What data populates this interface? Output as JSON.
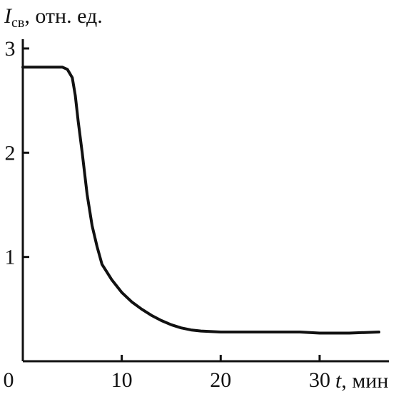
{
  "chart_data": {
    "type": "line",
    "ylabel": {
      "symbol": "I",
      "subscript": "св",
      "unit": ", отн. ед."
    },
    "xlabel": {
      "symbol": "t",
      "unit": ", мин"
    },
    "xlim": [
      0,
      37
    ],
    "ylim": [
      0,
      3
    ],
    "x_ticks": [
      0,
      10,
      20,
      30
    ],
    "y_ticks": [
      1,
      2,
      3
    ],
    "grid": false,
    "series": [
      {
        "x": [
          0,
          1,
          2,
          3,
          4,
          4.5,
          5,
          5.3,
          5.6,
          6,
          6.5,
          7,
          7.5,
          8,
          9,
          10,
          11,
          12,
          13,
          14,
          15,
          16,
          17,
          18,
          20,
          22,
          25,
          28,
          30,
          33,
          36
        ],
        "y": [
          2.82,
          2.82,
          2.82,
          2.82,
          2.82,
          2.8,
          2.72,
          2.55,
          2.3,
          2.0,
          1.6,
          1.3,
          1.1,
          0.93,
          0.78,
          0.66,
          0.57,
          0.5,
          0.44,
          0.39,
          0.35,
          0.32,
          0.3,
          0.29,
          0.28,
          0.28,
          0.28,
          0.28,
          0.27,
          0.27,
          0.28
        ]
      }
    ]
  }
}
